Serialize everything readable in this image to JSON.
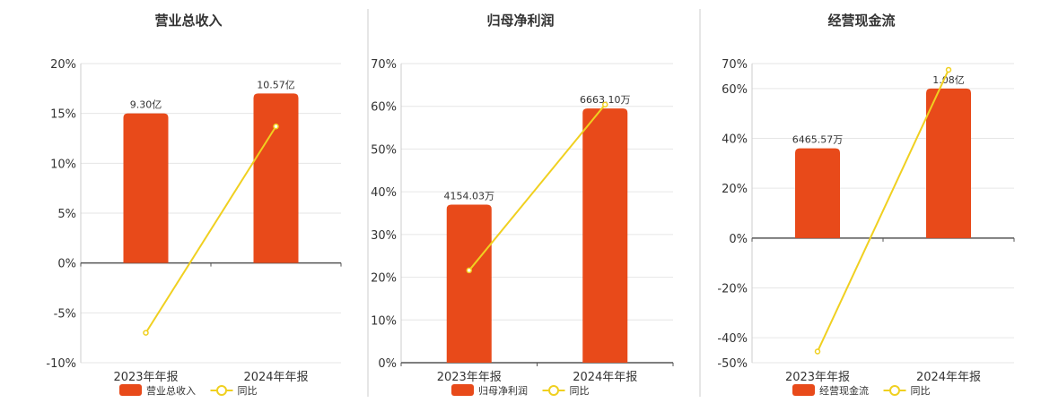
{
  "colors": {
    "bar": "#e84a1a",
    "line": "#f0d020",
    "grid": "#e6e6e6",
    "axis": "#555555",
    "divider": "#cccccc"
  },
  "chart_data": [
    {
      "type": "bar",
      "title": "营业总收入",
      "categories": [
        "2023年年报",
        "2024年年报"
      ],
      "ylim": [
        -10,
        20
      ],
      "yticks": [
        -10,
        -5,
        0,
        5,
        10,
        15,
        20
      ],
      "ytick_labels": [
        "-10%",
        "-5%",
        "0%",
        "5%",
        "10%",
        "15%",
        "20%"
      ],
      "series": [
        {
          "name": "营业总收入",
          "kind": "bar",
          "values": [
            15,
            17
          ],
          "labels": [
            "9.30亿",
            "10.57亿"
          ]
        },
        {
          "name": "同比",
          "kind": "line",
          "values": [
            -7.0,
            13.7
          ]
        }
      ],
      "legend": "bottom-center",
      "grid": true
    },
    {
      "type": "bar",
      "title": "归母净利润",
      "categories": [
        "2023年年报",
        "2024年年报"
      ],
      "ylim": [
        0,
        70
      ],
      "yticks": [
        0,
        10,
        20,
        30,
        40,
        50,
        60,
        70
      ],
      "ytick_labels": [
        "0%",
        "10%",
        "20%",
        "30%",
        "40%",
        "50%",
        "60%",
        "70%"
      ],
      "series": [
        {
          "name": "归母净利润",
          "kind": "bar",
          "values": [
            37,
            59.5
          ],
          "labels": [
            "4154.03万",
            "6663.10万"
          ]
        },
        {
          "name": "同比",
          "kind": "line",
          "values": [
            21.6,
            60.4
          ]
        }
      ],
      "legend": "bottom-center",
      "grid": true
    },
    {
      "type": "bar",
      "title": "经营现金流",
      "categories": [
        "2023年年报",
        "2024年年报"
      ],
      "ylim": [
        -50,
        70
      ],
      "yticks": [
        -50,
        -40,
        -20,
        0,
        20,
        40,
        60,
        70
      ],
      "ytick_labels": [
        "-50%",
        "-40%",
        "-20%",
        "0%",
        "20%",
        "40%",
        "60%",
        "70%"
      ],
      "series": [
        {
          "name": "经营现金流",
          "kind": "bar",
          "values": [
            36,
            60
          ],
          "labels": [
            "6465.57万",
            "1.08亿"
          ]
        },
        {
          "name": "同比",
          "kind": "line",
          "values": [
            -45.5,
            67.5
          ]
        }
      ],
      "legend": "bottom-center",
      "grid": true
    }
  ]
}
